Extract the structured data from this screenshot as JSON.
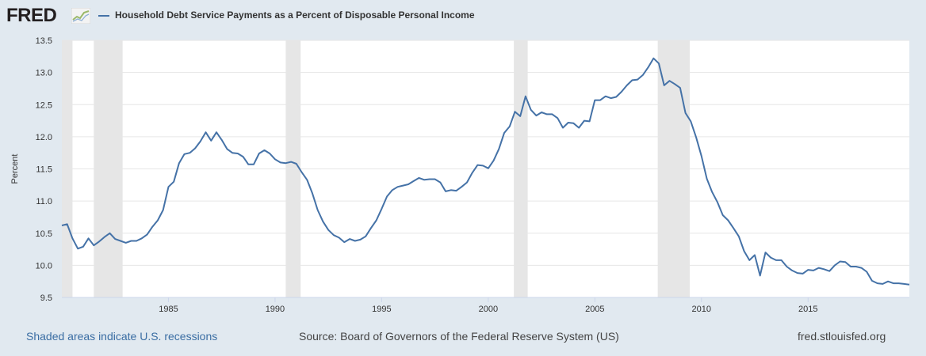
{
  "header": {
    "logo_text": "FRED",
    "logo_icon": "fred-graph-icon",
    "title": "Household Debt Service Payments as a Percent of Disposable Personal Income",
    "series_color": "#4572a7"
  },
  "footer": {
    "recession_note": "Shaded areas indicate U.S. recessions",
    "source": "Source: Board of Governors of the Federal Reserve System (US)",
    "site": "fred.stlouisfed.org"
  },
  "chart_data": {
    "type": "line",
    "title": "Household Debt Service Payments as a Percent of Disposable Personal Income",
    "ylabel": "Percent",
    "xlabel": "",
    "xlim": [
      1980.0,
      2019.75
    ],
    "ylim": [
      9.5,
      13.5
    ],
    "yticks": [
      "9.5",
      "10.0",
      "10.5",
      "11.0",
      "11.5",
      "12.0",
      "12.5",
      "13.0",
      "13.5"
    ],
    "xticks": [
      "1985",
      "1990",
      "1995",
      "2000",
      "2005",
      "2010",
      "2015"
    ],
    "grid": true,
    "line_color": "#4572a7",
    "recession_color": "#e6e6e6",
    "recessions": [
      [
        1980.0,
        1980.5
      ],
      [
        1981.5,
        1982.85
      ],
      [
        1990.5,
        1991.2
      ],
      [
        2001.2,
        2001.85
      ],
      [
        2007.95,
        2009.45
      ]
    ],
    "series": [
      {
        "x": [
          1980.0,
          1980.25,
          1980.5,
          1980.75,
          1981.0,
          1981.25,
          1981.5,
          1981.75,
          1982.0,
          1982.25,
          1982.5,
          1982.75,
          1983.0,
          1983.25,
          1983.5,
          1983.75,
          1984.0,
          1984.25,
          1984.5,
          1984.75,
          1985.0,
          1985.25,
          1985.5,
          1985.75,
          1986.0,
          1986.25,
          1986.5,
          1986.75,
          1987.0,
          1987.25,
          1987.5,
          1987.75,
          1988.0,
          1988.25,
          1988.5,
          1988.75,
          1989.0,
          1989.25,
          1989.5,
          1989.75,
          1990.0,
          1990.25,
          1990.5,
          1990.75,
          1991.0,
          1991.25,
          1991.5,
          1991.75,
          1992.0,
          1992.25,
          1992.5,
          1992.75,
          1993.0,
          1993.25,
          1993.5,
          1993.75,
          1994.0,
          1994.25,
          1994.5,
          1994.75,
          1995.0,
          1995.25,
          1995.5,
          1995.75,
          1996.0,
          1996.25,
          1996.5,
          1996.75,
          1997.0,
          1997.25,
          1997.5,
          1997.75,
          1998.0,
          1998.25,
          1998.5,
          1998.75,
          1999.0,
          1999.25,
          1999.5,
          1999.75,
          2000.0,
          2000.25,
          2000.5,
          2000.75,
          2001.0,
          2001.25,
          2001.5,
          2001.75,
          2002.0,
          2002.25,
          2002.5,
          2002.75,
          2003.0,
          2003.25,
          2003.5,
          2003.75,
          2004.0,
          2004.25,
          2004.5,
          2004.75,
          2005.0,
          2005.25,
          2005.5,
          2005.75,
          2006.0,
          2006.25,
          2006.5,
          2006.75,
          2007.0,
          2007.25,
          2007.5,
          2007.75,
          2008.0,
          2008.25,
          2008.5,
          2008.75,
          2009.0,
          2009.25,
          2009.5,
          2009.75,
          2010.0,
          2010.25,
          2010.5,
          2010.75,
          2011.0,
          2011.25,
          2011.5,
          2011.75,
          2012.0,
          2012.25,
          2012.5,
          2012.75,
          2013.0,
          2013.25,
          2013.5,
          2013.75,
          2014.0,
          2014.25,
          2014.5,
          2014.75,
          2015.0,
          2015.25,
          2015.5,
          2015.75,
          2016.0,
          2016.25,
          2016.5,
          2016.75,
          2017.0,
          2017.25,
          2017.5,
          2017.75,
          2018.0,
          2018.25,
          2018.5,
          2018.75,
          2019.0,
          2019.25,
          2019.5,
          2019.75
        ],
        "values": [
          10.62,
          10.64,
          10.42,
          10.26,
          10.29,
          10.42,
          10.31,
          10.37,
          10.44,
          10.5,
          10.41,
          10.38,
          10.35,
          10.38,
          10.38,
          10.42,
          10.48,
          10.6,
          10.7,
          10.86,
          11.22,
          11.3,
          11.59,
          11.73,
          11.75,
          11.82,
          11.93,
          12.07,
          11.94,
          12.07,
          11.95,
          11.81,
          11.75,
          11.74,
          11.69,
          11.57,
          11.57,
          11.74,
          11.79,
          11.74,
          11.65,
          11.6,
          11.59,
          11.61,
          11.58,
          11.45,
          11.33,
          11.12,
          10.86,
          10.68,
          10.55,
          10.47,
          10.43,
          10.36,
          10.41,
          10.38,
          10.4,
          10.45,
          10.58,
          10.7,
          10.88,
          11.07,
          11.17,
          11.22,
          11.24,
          11.26,
          11.31,
          11.36,
          11.33,
          11.34,
          11.34,
          11.29,
          11.15,
          11.17,
          11.16,
          11.22,
          11.29,
          11.44,
          11.56,
          11.55,
          11.51,
          11.63,
          11.81,
          12.06,
          12.16,
          12.39,
          12.32,
          12.63,
          12.42,
          12.33,
          12.38,
          12.35,
          12.35,
          12.29,
          12.14,
          12.22,
          12.21,
          12.14,
          12.25,
          12.24,
          12.57,
          12.57,
          12.63,
          12.6,
          12.62,
          12.7,
          12.8,
          12.88,
          12.89,
          12.96,
          13.08,
          13.22,
          13.14,
          12.8,
          12.87,
          12.82,
          12.76,
          12.37,
          12.24,
          11.99,
          11.7,
          11.35,
          11.14,
          10.98,
          10.78,
          10.7,
          10.58,
          10.45,
          10.22,
          10.08,
          10.16,
          9.84,
          10.2,
          10.12,
          10.08,
          10.08,
          9.98,
          9.92,
          9.88,
          9.87,
          9.93,
          9.92,
          9.96,
          9.94,
          9.91,
          10.0,
          10.06,
          10.05,
          9.98,
          9.98,
          9.96,
          9.9,
          9.76,
          9.72,
          9.71,
          9.75,
          9.72,
          9.72,
          9.71,
          9.7
        ]
      }
    ]
  }
}
